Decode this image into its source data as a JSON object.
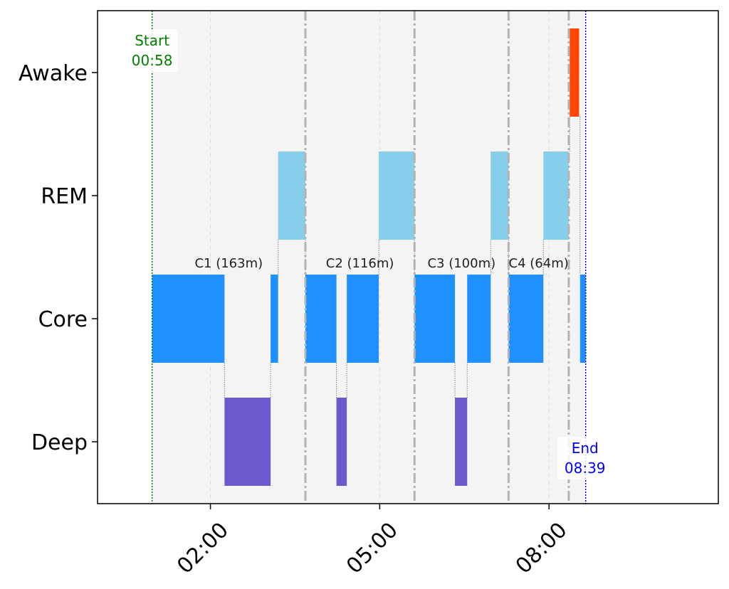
{
  "chart_data": {
    "type": "timeline",
    "title": "",
    "xlabel": "",
    "ylabel": "",
    "x_unit": "minutes since midnight",
    "xlim": [
      0,
      660
    ],
    "x_ticks": [
      {
        "value": 120,
        "label": "02:00"
      },
      {
        "value": 300,
        "label": "05:00"
      },
      {
        "value": 480,
        "label": "08:00"
      }
    ],
    "stages": [
      "Awake",
      "REM",
      "Core",
      "Deep"
    ],
    "colors": {
      "Awake": "#ff4500",
      "REM": "#87ceeb",
      "Core": "#1e90ff",
      "Deep": "#6a5acd",
      "start_marker": "#008000",
      "end_marker": "#0000ff",
      "cycle_boundary": "#b3b3b3",
      "cycle_shade": "#f4f4f4"
    },
    "segments": [
      {
        "stage": "Core",
        "start": 58,
        "end": 135
      },
      {
        "stage": "Deep",
        "start": 135,
        "end": 184
      },
      {
        "stage": "Core",
        "start": 184,
        "end": 192
      },
      {
        "stage": "REM",
        "start": 192,
        "end": 221
      },
      {
        "stage": "Core",
        "start": 221,
        "end": 254
      },
      {
        "stage": "Deep",
        "start": 254,
        "end": 265
      },
      {
        "stage": "Core",
        "start": 265,
        "end": 299
      },
      {
        "stage": "REM",
        "start": 299,
        "end": 337
      },
      {
        "stage": "Core",
        "start": 337,
        "end": 380
      },
      {
        "stage": "Deep",
        "start": 380,
        "end": 393
      },
      {
        "stage": "Core",
        "start": 393,
        "end": 418
      },
      {
        "stage": "REM",
        "start": 418,
        "end": 437
      },
      {
        "stage": "Core",
        "start": 437,
        "end": 474
      },
      {
        "stage": "REM",
        "start": 474,
        "end": 501
      },
      {
        "stage": "Awake",
        "start": 502,
        "end": 512
      },
      {
        "stage": "Core",
        "start": 513,
        "end": 519
      }
    ],
    "cycles": [
      {
        "label": "C1 (163m)",
        "start": 58,
        "end": 221
      },
      {
        "label": "C2 (116m)",
        "start": 221,
        "end": 337
      },
      {
        "label": "C3 (100m)",
        "start": 337,
        "end": 437
      },
      {
        "label": "C4 (64m)",
        "start": 437,
        "end": 501
      }
    ],
    "start_marker": {
      "time": 58,
      "title": "Start",
      "label": "00:58"
    },
    "end_marker": {
      "time": 519,
      "title": "End",
      "label": "08:39"
    },
    "grid": true
  }
}
